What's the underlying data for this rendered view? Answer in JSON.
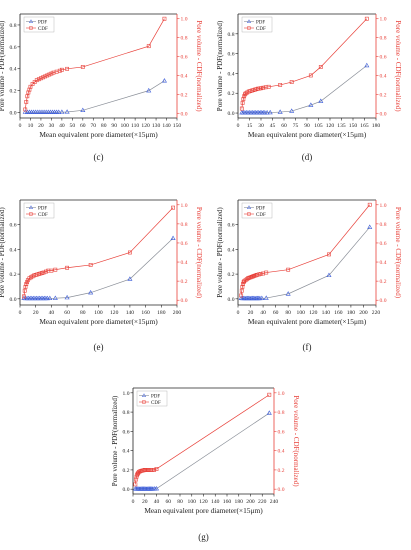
{
  "colors": {
    "pdf": "#3a5bd9",
    "cdf": "#e8413a",
    "pdf_line": "#8a8f98",
    "axis": "#222222"
  },
  "chart_data": [
    {
      "panel_label": "(c)",
      "type": "line",
      "xlabel": "Mean equivalent pore diameter(×15μm)",
      "ylabel_left": "Pore volume - PDF(normalized)",
      "ylabel_right": "Pore volume - CDF(normalized)",
      "xlim": [
        0,
        150
      ],
      "xticks": [
        0,
        10,
        20,
        30,
        40,
        50,
        60,
        70,
        80,
        90,
        100,
        110,
        120,
        130,
        140,
        150
      ],
      "ylim_left": [
        -0.05,
        0.9
      ],
      "yticks_left": [
        0.0,
        0.2,
        0.4,
        0.6,
        0.8
      ],
      "ylim_right": [
        -0.05,
        1.05
      ],
      "yticks_right": [
        0.0,
        0.2,
        0.4,
        0.6,
        0.8,
        1.0
      ],
      "grid": false,
      "legend": "top-left",
      "series": [
        {
          "name": "PDF",
          "axis": "left",
          "x": [
            5,
            7,
            9,
            11,
            13,
            15,
            17,
            19,
            21,
            23,
            25,
            27,
            29,
            31,
            33,
            35,
            37,
            40,
            45,
            60,
            123,
            138
          ],
          "y": [
            0.004,
            0.003,
            0.003,
            0.003,
            0.003,
            0.003,
            0.003,
            0.003,
            0.003,
            0.003,
            0.003,
            0.003,
            0.003,
            0.003,
            0.003,
            0.003,
            0.003,
            0.004,
            0.005,
            0.02,
            0.2,
            0.29
          ]
        },
        {
          "name": "CDF",
          "axis": "right",
          "x": [
            5,
            6,
            7,
            8,
            9,
            10,
            12,
            14,
            16,
            18,
            20,
            22,
            24,
            26,
            28,
            30,
            32,
            35,
            38,
            40,
            45,
            60,
            123,
            138
          ],
          "y": [
            0.04,
            0.12,
            0.18,
            0.22,
            0.25,
            0.28,
            0.31,
            0.33,
            0.35,
            0.36,
            0.37,
            0.38,
            0.39,
            0.4,
            0.41,
            0.42,
            0.43,
            0.44,
            0.45,
            0.46,
            0.47,
            0.49,
            0.71,
            1.0
          ]
        }
      ]
    },
    {
      "panel_label": "(d)",
      "type": "line",
      "xlabel": "Mean equivalent pore diameter(×15μm)",
      "ylabel_left": "Pore volume - PDF(normalized)",
      "ylabel_right": "Pore volume - CDF(normalized)",
      "xlim": [
        0,
        180
      ],
      "xticks": [
        0,
        15,
        30,
        45,
        60,
        75,
        90,
        105,
        120,
        135,
        150,
        165,
        180
      ],
      "ylim_left": [
        -0.05,
        1.0
      ],
      "yticks_left": [
        0.0,
        0.2,
        0.4,
        0.6,
        0.8
      ],
      "ylim_right": [
        -0.05,
        1.05
      ],
      "yticks_right": [
        0.0,
        0.2,
        0.4,
        0.6,
        0.8,
        1.0
      ],
      "grid": false,
      "legend": "top-left",
      "series": [
        {
          "name": "PDF",
          "axis": "left",
          "x": [
            5,
            7,
            9,
            11,
            13,
            15,
            17,
            19,
            21,
            23,
            25,
            27,
            29,
            31,
            33,
            35,
            38,
            42,
            55,
            70,
            95,
            108,
            168
          ],
          "y": [
            0.004,
            0.003,
            0.003,
            0.003,
            0.003,
            0.003,
            0.003,
            0.003,
            0.003,
            0.003,
            0.003,
            0.003,
            0.003,
            0.003,
            0.003,
            0.003,
            0.004,
            0.005,
            0.01,
            0.02,
            0.08,
            0.12,
            0.48
          ]
        },
        {
          "name": "CDF",
          "axis": "right",
          "x": [
            5,
            6,
            7,
            8,
            9,
            10,
            12,
            14,
            16,
            18,
            20,
            22,
            24,
            26,
            28,
            30,
            33,
            36,
            40,
            55,
            70,
            95,
            108,
            168
          ],
          "y": [
            0.05,
            0.11,
            0.15,
            0.18,
            0.2,
            0.21,
            0.22,
            0.23,
            0.235,
            0.24,
            0.245,
            0.25,
            0.255,
            0.26,
            0.262,
            0.265,
            0.27,
            0.275,
            0.28,
            0.3,
            0.33,
            0.4,
            0.49,
            1.0
          ]
        }
      ]
    },
    {
      "panel_label": "(e)",
      "type": "line",
      "xlabel": "Mean equivalent pore diameter(×15μm)",
      "ylabel_left": "Pore volume - PDF(normalized)",
      "ylabel_right": "Pore volume - CDF(normalized)",
      "xlim": [
        0,
        200
      ],
      "xticks": [
        0,
        20,
        40,
        60,
        80,
        100,
        120,
        140,
        160,
        180,
        200
      ],
      "ylim_left": [
        -0.05,
        0.8
      ],
      "yticks_left": [
        0.0,
        0.2,
        0.4,
        0.6
      ],
      "ylim_right": [
        -0.05,
        1.05
      ],
      "yticks_right": [
        0.0,
        0.2,
        0.4,
        0.6,
        0.8,
        1.0
      ],
      "grid": false,
      "legend": "top-left",
      "series": [
        {
          "name": "PDF",
          "axis": "left",
          "x": [
            5,
            7,
            9,
            11,
            13,
            15,
            17,
            19,
            21,
            23,
            25,
            27,
            29,
            31,
            33,
            35,
            38,
            45,
            60,
            90,
            140,
            195
          ],
          "y": [
            0.004,
            0.003,
            0.003,
            0.003,
            0.003,
            0.003,
            0.003,
            0.003,
            0.003,
            0.003,
            0.003,
            0.003,
            0.003,
            0.003,
            0.003,
            0.003,
            0.004,
            0.005,
            0.01,
            0.05,
            0.16,
            0.49
          ]
        },
        {
          "name": "CDF",
          "axis": "right",
          "x": [
            5,
            6,
            7,
            8,
            9,
            10,
            12,
            14,
            16,
            18,
            20,
            22,
            24,
            26,
            28,
            30,
            33,
            36,
            40,
            45,
            60,
            90,
            140,
            195
          ],
          "y": [
            0.04,
            0.1,
            0.14,
            0.17,
            0.19,
            0.21,
            0.23,
            0.24,
            0.25,
            0.26,
            0.265,
            0.27,
            0.275,
            0.28,
            0.285,
            0.29,
            0.3,
            0.31,
            0.31,
            0.32,
            0.34,
            0.37,
            0.5,
            0.97
          ]
        }
      ]
    },
    {
      "panel_label": "(f)",
      "type": "line",
      "xlabel": "Mean equivalent pore diameter(×15μm)",
      "ylabel_left": "Pore volume - PDF(normalized)",
      "ylabel_right": "Pore volume - CDF(normalized)",
      "xlim": [
        0,
        220
      ],
      "xticks": [
        0,
        20,
        40,
        60,
        80,
        100,
        120,
        140,
        160,
        180,
        200,
        220
      ],
      "ylim_left": [
        -0.05,
        0.8
      ],
      "yticks_left": [
        0.0,
        0.2,
        0.4,
        0.6
      ],
      "ylim_right": [
        -0.05,
        1.05
      ],
      "yticks_right": [
        0.0,
        0.2,
        0.4,
        0.6,
        0.8,
        1.0
      ],
      "grid": false,
      "legend": "top-left",
      "series": [
        {
          "name": "PDF",
          "axis": "left",
          "x": [
            5,
            7,
            9,
            11,
            13,
            15,
            17,
            19,
            21,
            23,
            25,
            27,
            29,
            31,
            33,
            35,
            38,
            45,
            80,
            145,
            210
          ],
          "y": [
            0.004,
            0.003,
            0.003,
            0.003,
            0.003,
            0.003,
            0.003,
            0.003,
            0.003,
            0.003,
            0.003,
            0.003,
            0.003,
            0.003,
            0.003,
            0.003,
            0.004,
            0.006,
            0.04,
            0.19,
            0.58
          ]
        },
        {
          "name": "CDF",
          "axis": "right",
          "x": [
            5,
            6,
            7,
            8,
            9,
            10,
            12,
            14,
            16,
            18,
            20,
            22,
            24,
            26,
            28,
            30,
            33,
            36,
            40,
            45,
            80,
            145,
            210
          ],
          "y": [
            0.05,
            0.1,
            0.14,
            0.17,
            0.19,
            0.2,
            0.21,
            0.22,
            0.23,
            0.235,
            0.24,
            0.245,
            0.25,
            0.255,
            0.26,
            0.265,
            0.27,
            0.275,
            0.28,
            0.29,
            0.32,
            0.48,
            1.0
          ]
        }
      ]
    },
    {
      "panel_label": "(g)",
      "type": "line",
      "xlabel": "Mean equivalent pore diameter(×15μm)",
      "ylabel_left": "Pore volume - PDF(normalized)",
      "ylabel_right": "Pore volume - CDF(normalized)",
      "xlim": [
        0,
        240
      ],
      "xticks": [
        0,
        20,
        40,
        60,
        80,
        100,
        120,
        140,
        160,
        180,
        200,
        220,
        240
      ],
      "ylim_left": [
        -0.05,
        1.05
      ],
      "yticks_left": [
        0.0,
        0.2,
        0.4,
        0.6,
        0.8,
        1.0
      ],
      "ylim_right": [
        -0.05,
        1.05
      ],
      "yticks_right": [
        0.0,
        0.2,
        0.4,
        0.6,
        0.8,
        1.0
      ],
      "grid": false,
      "legend": "top-left",
      "series": [
        {
          "name": "PDF",
          "axis": "left",
          "x": [
            4,
            6,
            8,
            10,
            12,
            14,
            16,
            18,
            20,
            22,
            24,
            26,
            28,
            30,
            32,
            34,
            37,
            40,
            232
          ],
          "y": [
            0.004,
            0.003,
            0.003,
            0.003,
            0.003,
            0.003,
            0.003,
            0.003,
            0.003,
            0.003,
            0.003,
            0.003,
            0.003,
            0.003,
            0.003,
            0.003,
            0.004,
            0.005,
            0.79
          ]
        },
        {
          "name": "CDF",
          "axis": "right",
          "x": [
            4,
            5,
            6,
            7,
            8,
            9,
            10,
            12,
            14,
            16,
            18,
            20,
            22,
            24,
            26,
            28,
            30,
            33,
            36,
            40,
            232
          ],
          "y": [
            0.05,
            0.1,
            0.13,
            0.15,
            0.16,
            0.17,
            0.18,
            0.185,
            0.19,
            0.193,
            0.196,
            0.2,
            0.2,
            0.2,
            0.2,
            0.2,
            0.2,
            0.2,
            0.2,
            0.21,
            0.98
          ]
        }
      ]
    }
  ]
}
